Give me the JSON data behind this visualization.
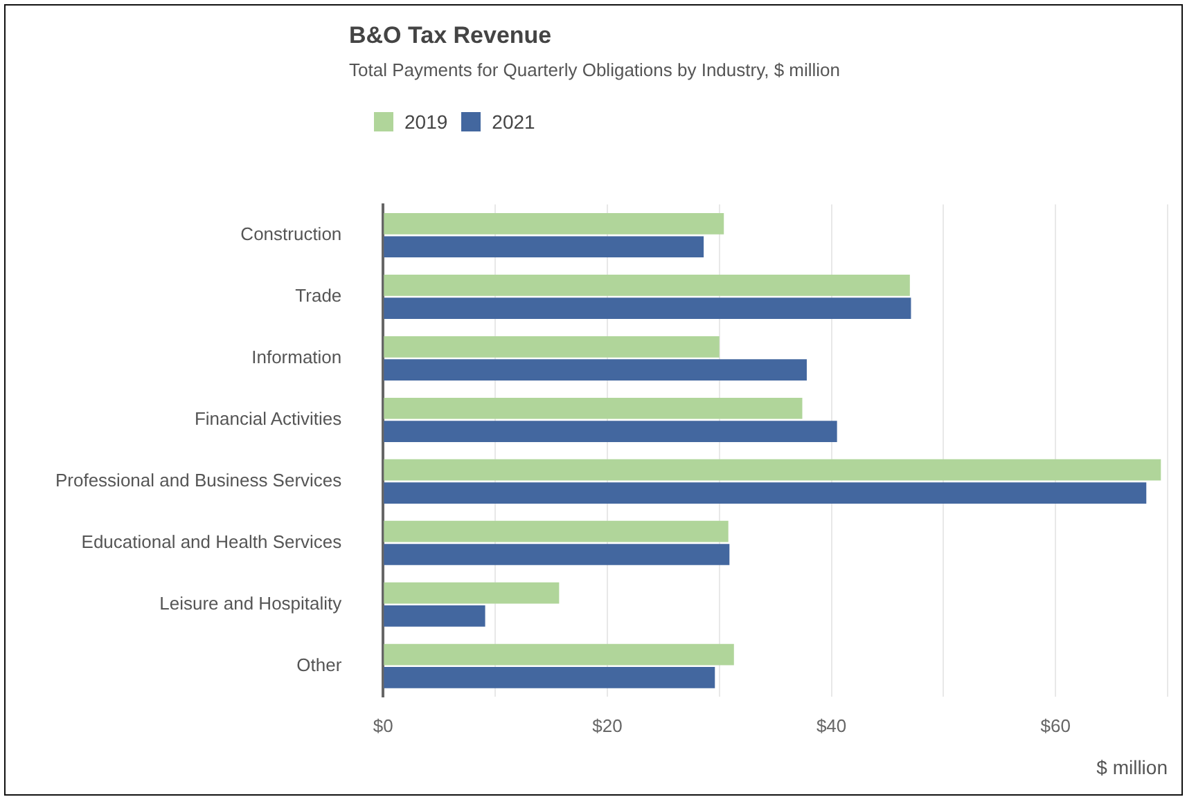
{
  "chart_data": {
    "type": "bar",
    "orientation": "horizontal",
    "title": "B&O Tax Revenue",
    "subtitle": "Total Payments for Quarterly Obligations by Industry, $ million",
    "xlabel": "$ million",
    "categories": [
      "Construction",
      "Trade",
      "Information",
      "Financial Activities",
      "Professional and Business Services",
      "Educational and Health Services",
      "Leisure and Hospitality",
      "Other"
    ],
    "series": [
      {
        "name": "2019",
        "color": "#b0d59a",
        "values": [
          30.4,
          47.0,
          30.0,
          37.4,
          69.4,
          30.8,
          15.7,
          31.3
        ]
      },
      {
        "name": "2021",
        "color": "#43679f",
        "values": [
          28.6,
          47.1,
          37.8,
          40.5,
          68.1,
          30.9,
          9.1,
          29.6
        ]
      }
    ],
    "xlim": [
      0,
      70
    ],
    "xticks": [
      {
        "value": 0,
        "label": "$0"
      },
      {
        "value": 10,
        "label": null
      },
      {
        "value": 20,
        "label": "$20"
      },
      {
        "value": 30,
        "label": null
      },
      {
        "value": 40,
        "label": "$40"
      },
      {
        "value": 50,
        "label": null
      },
      {
        "value": 60,
        "label": "$60"
      },
      {
        "value": 70,
        "label": null
      }
    ],
    "grid": "x",
    "legend": "top left"
  }
}
